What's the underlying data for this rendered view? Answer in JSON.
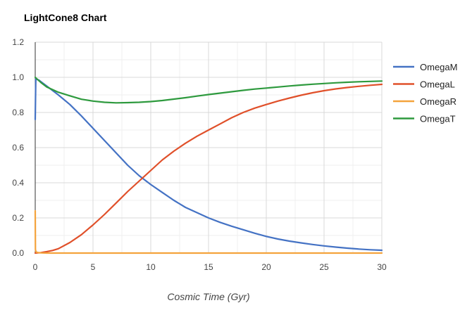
{
  "chart_data": {
    "type": "line",
    "title": "LightCone8 Chart",
    "xlabel": "Cosmic Time (Gyr)",
    "ylabel": "",
    "xlim": [
      0,
      30
    ],
    "ylim": [
      0,
      1.2
    ],
    "xticks": [
      0,
      5,
      10,
      15,
      20,
      25,
      30
    ],
    "xtick_labels": [
      "0",
      "5",
      "10",
      "15",
      "20",
      "25",
      "30"
    ],
    "yticks": [
      0,
      0.2,
      0.4,
      0.6,
      0.8,
      1.0,
      1.2
    ],
    "ytick_labels": [
      "0.0",
      "0.2",
      "0.4",
      "0.6",
      "0.8",
      "1.0",
      "1.2"
    ],
    "grid": true,
    "legend_position": "right",
    "series": [
      {
        "name": "OmegaM",
        "color": "#4472c4",
        "x": [
          0,
          0.05,
          0.3,
          0.6,
          1,
          2,
          3,
          4,
          5,
          6,
          7,
          8,
          9,
          10,
          11,
          12,
          13,
          14,
          15,
          16,
          17,
          18,
          19,
          20,
          21,
          22,
          23,
          24,
          25,
          26,
          27,
          28,
          29,
          30
        ],
        "y": [
          0.76,
          0.99,
          0.985,
          0.97,
          0.95,
          0.9,
          0.845,
          0.78,
          0.71,
          0.64,
          0.57,
          0.5,
          0.44,
          0.39,
          0.345,
          0.3,
          0.26,
          0.23,
          0.2,
          0.175,
          0.153,
          0.133,
          0.113,
          0.095,
          0.08,
          0.068,
          0.058,
          0.049,
          0.041,
          0.034,
          0.028,
          0.023,
          0.019,
          0.016
        ]
      },
      {
        "name": "OmegaL",
        "color": "#e0502a",
        "x": [
          0,
          0.5,
          1,
          1.5,
          2,
          3,
          4,
          5,
          6,
          7,
          8,
          9,
          10,
          11,
          12,
          13,
          14,
          15,
          16,
          17,
          18,
          19,
          20,
          21,
          22,
          23,
          24,
          25,
          26,
          27,
          28,
          29,
          30
        ],
        "y": [
          0,
          0.003,
          0.008,
          0.015,
          0.025,
          0.06,
          0.105,
          0.16,
          0.22,
          0.285,
          0.35,
          0.41,
          0.47,
          0.53,
          0.58,
          0.625,
          0.665,
          0.7,
          0.735,
          0.77,
          0.8,
          0.825,
          0.845,
          0.865,
          0.882,
          0.898,
          0.912,
          0.924,
          0.934,
          0.942,
          0.949,
          0.955,
          0.96
        ]
      },
      {
        "name": "OmegaR",
        "color": "#f4a33c",
        "x": [
          0,
          0.02,
          0.06,
          0.12,
          0.3,
          0.6,
          1,
          3,
          30
        ],
        "y": [
          0.24,
          0.02,
          0.009,
          0.005,
          0.002,
          0.001,
          0,
          0,
          0
        ]
      },
      {
        "name": "OmegaT",
        "color": "#2e9a3e",
        "x": [
          0,
          0.5,
          1,
          2,
          3,
          4,
          5,
          6,
          7,
          8,
          9,
          10,
          11,
          12,
          13,
          14,
          15,
          16,
          17,
          18,
          19,
          20,
          21,
          22,
          23,
          24,
          25,
          26,
          27,
          28,
          29,
          30
        ],
        "y": [
          1.0,
          0.97,
          0.945,
          0.915,
          0.895,
          0.875,
          0.865,
          0.858,
          0.855,
          0.856,
          0.858,
          0.862,
          0.868,
          0.876,
          0.884,
          0.893,
          0.902,
          0.91,
          0.918,
          0.926,
          0.933,
          0.939,
          0.945,
          0.951,
          0.956,
          0.961,
          0.965,
          0.969,
          0.972,
          0.975,
          0.977,
          0.979
        ]
      }
    ]
  }
}
